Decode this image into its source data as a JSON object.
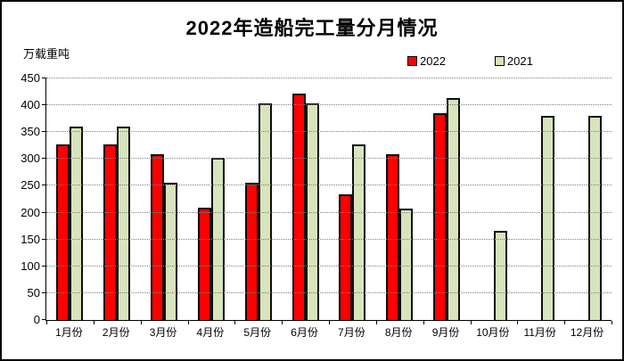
{
  "chart_data": {
    "type": "bar",
    "title": "2022年造船完工量分月情况",
    "unit_label": "万载重吨",
    "categories": [
      "1月份",
      "2月份",
      "3月份",
      "4月份",
      "5月份",
      "6月份",
      "7月份",
      "8月份",
      "9月份",
      "10月份",
      "11月份",
      "12月份"
    ],
    "series": [
      {
        "name": "2022",
        "color": "#FF0000",
        "values": [
          327,
          327,
          309,
          210,
          256,
          421,
          234,
          309,
          386,
          null,
          null,
          null
        ]
      },
      {
        "name": "2021",
        "color": "#D8E4BC",
        "values": [
          361,
          361,
          255,
          302,
          404,
          404,
          327,
          207,
          414,
          166,
          381,
          381
        ]
      }
    ],
    "ylim": [
      0,
      450
    ],
    "ytick_step": 50,
    "grid": "horizontal-dotted",
    "legend_position": "top-right",
    "colors": {
      "bar_border": "#0d0d0d",
      "gridline": "#808080",
      "axis": "#000000",
      "background": "#ffffff"
    }
  }
}
